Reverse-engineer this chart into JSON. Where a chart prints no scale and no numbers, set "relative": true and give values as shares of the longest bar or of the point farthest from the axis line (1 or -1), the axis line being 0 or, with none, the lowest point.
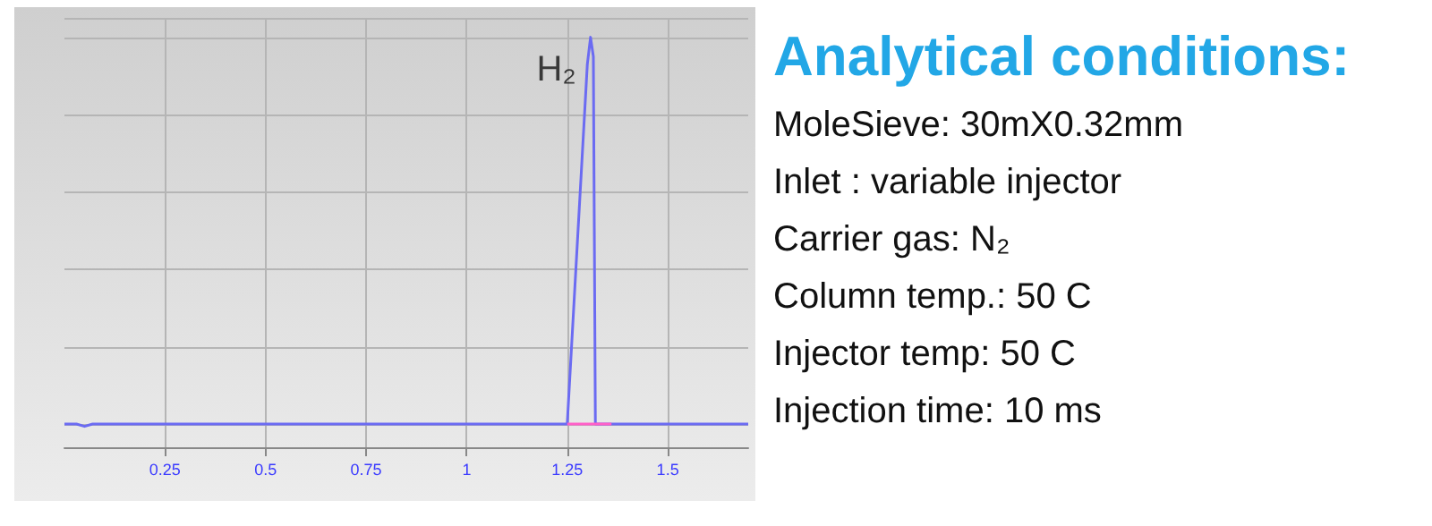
{
  "chart_data": [
    {
      "type": "line",
      "relative": true,
      "x": [
        0,
        0.03,
        0.05,
        0.07,
        0.1,
        0.5,
        1.0,
        1.25,
        1.3,
        1.308,
        1.315,
        1.32,
        1.33,
        1.36,
        1.7
      ],
      "series": [
        {
          "color": "#6b6bf2",
          "values": [
            0,
            0,
            -0.006,
            0,
            0,
            0,
            0,
            0,
            0.93,
            1,
            0.95,
            0,
            0,
            0,
            0
          ]
        },
        {
          "color": "#ff5fc8",
          "x": [
            1.25,
            1.36
          ],
          "values": [
            0,
            0
          ]
        }
      ],
      "xlim": [
        0,
        1.7
      ],
      "xticks": [
        0.25,
        0.5,
        0.75,
        1,
        1.25,
        1.5
      ],
      "grid": true,
      "marker": "none",
      "line_style": "solid",
      "annotations": [
        {
          "text": "H₂",
          "x": 1.308,
          "y": 1
        }
      ]
    },
    {
      "type": "other",
      "title": "Analytical conditions:",
      "annotations": [
        "MoleSieve:  30mX0.32mm",
        "Inlet :  variable injector",
        "Carrier gas:  N₂",
        "Column temp.: 50 C",
        "Injector temp:  50 C",
        "Injection time: 10 ms"
      ]
    }
  ]
}
